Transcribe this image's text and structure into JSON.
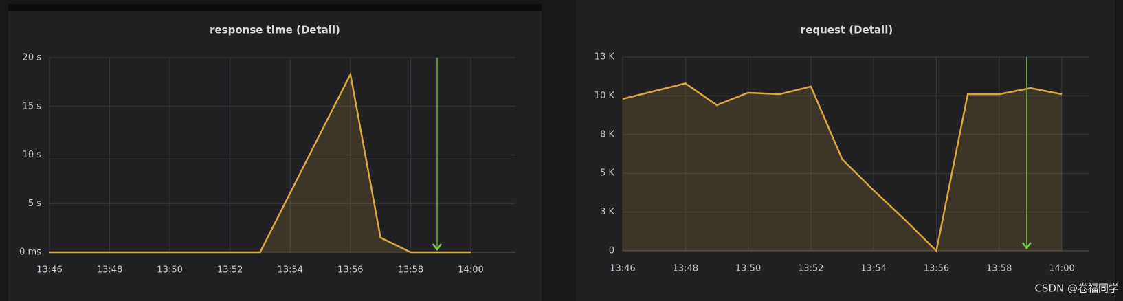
{
  "chart_data": [
    {
      "type": "line",
      "title": "response time (Detail)",
      "categories": [
        "13:46",
        null,
        "13:48",
        null,
        "13:50",
        null,
        "13:52",
        null,
        "13:54",
        null,
        "13:56",
        null,
        "13:58",
        null,
        "14:00"
      ],
      "series": [
        {
          "name": "response time",
          "color": "#d9a940",
          "values": [
            0,
            0,
            0,
            0,
            0,
            0,
            0,
            0,
            6.1,
            12.2,
            18.3,
            1.5,
            0,
            0,
            0
          ]
        }
      ],
      "ylim": [
        0,
        20
      ],
      "yticks": [
        {
          "value": 0,
          "label": "0 ms"
        },
        {
          "value": 5,
          "label": "5 s"
        },
        {
          "value": 10,
          "label": "10 s"
        },
        {
          "value": 15,
          "label": "15 s"
        },
        {
          "value": 20,
          "label": "20 s"
        }
      ],
      "grid": true,
      "fill": true
    },
    {
      "type": "line",
      "title": "request (Detail)",
      "categories": [
        "13:46",
        null,
        "13:48",
        null,
        "13:50",
        null,
        "13:52",
        null,
        "13:54",
        null,
        "13:56",
        null,
        "13:58",
        null,
        "14:00"
      ],
      "series": [
        {
          "name": "request",
          "color": "#d9a940",
          "values": [
            9.8,
            10.3,
            10.8,
            9.4,
            10.2,
            10.1,
            10.6,
            5.9,
            3.9,
            2.0,
            0,
            10.1,
            10.1,
            10.5,
            10.1
          ]
        }
      ],
      "ylim": [
        0,
        12.5
      ],
      "yticks": [
        0,
        {
          "value": 2.5,
          "label": "3 K"
        },
        {
          "value": 5,
          "label": "5 K"
        },
        {
          "value": 7.5,
          "label": "8 K"
        },
        {
          "value": 10,
          "label": "10 K"
        },
        {
          "value": 12.5,
          "label": "13 K"
        }
      ],
      "grid": true,
      "fill": true
    }
  ],
  "watermark": "CSDN @卷福同学"
}
